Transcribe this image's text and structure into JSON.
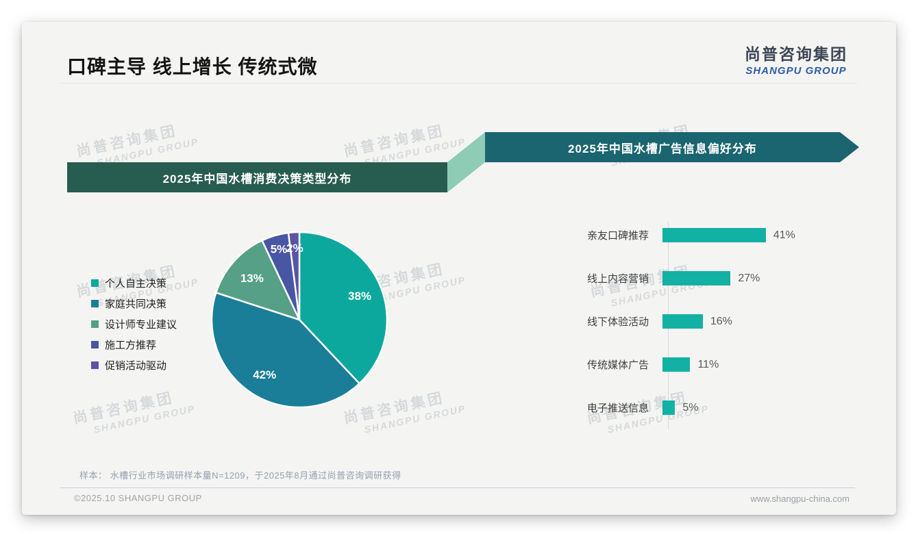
{
  "slide": {
    "title": "口碑主导 线上增长 传统式微",
    "logo": {
      "cn": "尚普咨询集团",
      "en": "SHANGPU GROUP"
    },
    "watermark": {
      "line1": "尚普咨询集团",
      "line2": "SHANGPU GROUP"
    },
    "sample_note": "样本： 水槽行业市场调研样本量N=1209，于2025年8月通过尚普咨询调研获得",
    "footer": {
      "left": "©2025.10 SHANGPU GROUP",
      "right": "www.shangpu-china.com"
    }
  },
  "colors": {
    "banner_left_bg": "#275c50",
    "banner_right_bg": "#1a6570",
    "banner_connector": "#8fccb6",
    "bar_color": "#12b1a3",
    "pie_slice_colors": [
      "#0da89d",
      "#1a7e98",
      "#55a086",
      "#4956a4",
      "#5b53a4"
    ]
  },
  "chart_data": [
    {
      "type": "pie",
      "title": "2025年中国水槽消费决策类型分布",
      "labels": [
        "个人自主决策",
        "家庭共同决策",
        "设计师专业建议",
        "施工方推荐",
        "促销活动驱动"
      ],
      "values": [
        38,
        42,
        13,
        5,
        2
      ],
      "value_format": "{}%",
      "colors": [
        "#0da89d",
        "#1a7e98",
        "#55a086",
        "#4956a4",
        "#5b53a4"
      ],
      "legend_position": "left",
      "start_angle_deg": 0,
      "direction": "clockwise",
      "slice_label_color": "#ffffff"
    },
    {
      "type": "bar",
      "orientation": "horizontal",
      "title": "2025年中国水槽广告信息偏好分布",
      "categories": [
        "亲友口碑推荐",
        "线上内容营销",
        "线下体验活动",
        "传统媒体广告",
        "电子推送信息"
      ],
      "values": [
        41,
        27,
        16,
        11,
        5
      ],
      "value_format": "{}%",
      "bar_color": "#12b1a3",
      "xlim": [
        0,
        45
      ],
      "grid": false
    }
  ]
}
